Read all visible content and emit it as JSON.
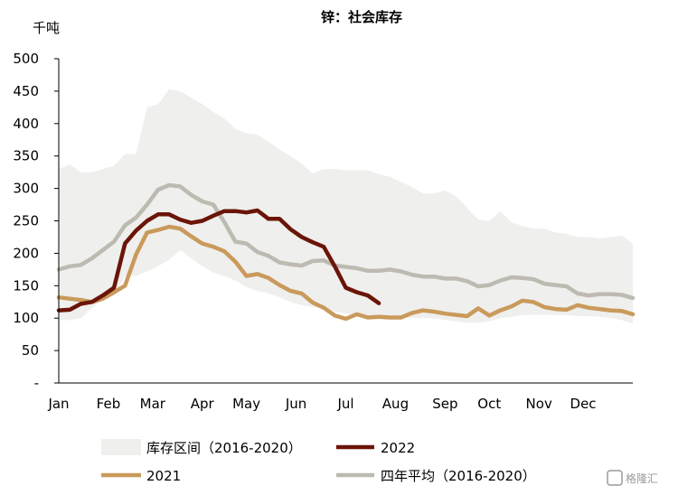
{
  "chart_data": {
    "type": "line",
    "title": "锌：社会库存",
    "ylabel": "千吨",
    "ylim": [
      0,
      500
    ],
    "yticks": [
      "-",
      "50",
      "100",
      "150",
      "200",
      "250",
      "300",
      "350",
      "400",
      "450",
      "500"
    ],
    "ytick_values": [
      0,
      50,
      100,
      150,
      200,
      250,
      300,
      350,
      400,
      450,
      500
    ],
    "x_range": [
      0,
      52
    ],
    "months": [
      "Jan",
      "Feb",
      "Mar",
      "Apr",
      "May",
      "Jun",
      "Jul",
      "Aug",
      "Sep",
      "Oct",
      "Nov",
      "Dec"
    ],
    "month_positions": [
      0,
      4.5,
      8.5,
      13,
      17,
      21.5,
      26,
      30.5,
      35,
      39,
      43.5,
      47.5
    ],
    "legend": {
      "band": "库存区间（2016-2020）",
      "s2022": "2022",
      "s2021": "2021",
      "avg": "四年平均（2016-2020）"
    },
    "band": {
      "name": "库存区间（2016-2020）",
      "color": "#efefed",
      "x": [
        0,
        1,
        2,
        3,
        4,
        5,
        6,
        7,
        8,
        9,
        10,
        11,
        12,
        13,
        14,
        15,
        16,
        17,
        18,
        19,
        20,
        21,
        22,
        23,
        24,
        25,
        26,
        27,
        28,
        29,
        30,
        31,
        32,
        33,
        34,
        35,
        36,
        37,
        38,
        39,
        40,
        41,
        42,
        43,
        44,
        45,
        46,
        47,
        48,
        49,
        50,
        51,
        52
      ],
      "upper": [
        330,
        337,
        325,
        325,
        330,
        335,
        353,
        353,
        425,
        430,
        453,
        450,
        440,
        430,
        418,
        408,
        392,
        385,
        383,
        372,
        360,
        350,
        338,
        323,
        330,
        330,
        328,
        328,
        328,
        322,
        318,
        310,
        302,
        292,
        292,
        297,
        288,
        270,
        252,
        250,
        265,
        248,
        242,
        238,
        238,
        232,
        230,
        225,
        225,
        223,
        225,
        227,
        215
      ],
      "lower": [
        97,
        97,
        100,
        115,
        128,
        135,
        165,
        165,
        172,
        180,
        190,
        205,
        192,
        180,
        170,
        165,
        158,
        148,
        142,
        138,
        132,
        125,
        120,
        117,
        115,
        110,
        107,
        105,
        102,
        100,
        100,
        100,
        100,
        100,
        100,
        97,
        95,
        93,
        93,
        95,
        100,
        102,
        105,
        105,
        105,
        105,
        105,
        103,
        103,
        102,
        100,
        97,
        92
      ]
    },
    "series": [
      {
        "name": "四年平均（2016-2020）",
        "color": "#bdbab1",
        "x": [
          0,
          1,
          2,
          3,
          4,
          5,
          6,
          7,
          8,
          9,
          10,
          11,
          12,
          13,
          14,
          15,
          16,
          17,
          18,
          19,
          20,
          21,
          22,
          23,
          24,
          25,
          26,
          27,
          28,
          29,
          30,
          31,
          32,
          33,
          34,
          35,
          36,
          37,
          38,
          39,
          40,
          41,
          42,
          43,
          44,
          45,
          46,
          47,
          48,
          49,
          50,
          51,
          52
        ],
        "values": [
          175,
          180,
          182,
          192,
          205,
          218,
          243,
          255,
          275,
          298,
          305,
          303,
          290,
          280,
          275,
          248,
          218,
          215,
          202,
          196,
          186,
          183,
          181,
          188,
          189,
          181,
          179,
          177,
          173,
          173,
          175,
          172,
          167,
          164,
          164,
          161,
          161,
          157,
          149,
          151,
          158,
          163,
          162,
          160,
          153,
          151,
          149,
          138,
          135,
          137,
          137,
          136,
          131
        ]
      },
      {
        "name": "2021",
        "color": "#c99a5b",
        "x": [
          0,
          1,
          2,
          3,
          4,
          5,
          6,
          7,
          8,
          9,
          10,
          11,
          12,
          13,
          14,
          15,
          16,
          17,
          18,
          19,
          20,
          21,
          22,
          23,
          24,
          25,
          26,
          27,
          28,
          29,
          30,
          31,
          32,
          33,
          34,
          35,
          36,
          37,
          38,
          39,
          40,
          41,
          42,
          43,
          44,
          45,
          46,
          47,
          48,
          49,
          50,
          51,
          52
        ],
        "values": [
          132,
          130,
          128,
          125,
          130,
          140,
          150,
          198,
          232,
          236,
          241,
          238,
          226,
          215,
          210,
          203,
          187,
          165,
          168,
          162,
          151,
          142,
          138,
          124,
          116,
          104,
          99,
          106,
          101,
          102,
          101,
          101,
          108,
          112,
          110,
          107,
          105,
          103,
          115,
          104,
          112,
          118,
          127,
          125,
          117,
          114,
          113,
          120,
          116,
          114,
          112,
          111,
          106
        ]
      },
      {
        "name": "2022",
        "color": "#6b1408",
        "x": [
          0,
          1,
          2,
          3,
          4,
          5,
          6,
          7,
          8,
          9,
          10,
          11,
          12,
          13,
          14,
          15,
          16,
          17,
          18,
          19,
          20,
          21,
          22,
          23,
          24,
          25,
          26,
          27,
          28,
          29
        ],
        "values": [
          112,
          113,
          122,
          125,
          135,
          147,
          215,
          235,
          250,
          260,
          260,
          252,
          247,
          250,
          258,
          265,
          265,
          263,
          266,
          253,
          253,
          237,
          225,
          217,
          210,
          180,
          147,
          140,
          135,
          123
        ]
      }
    ]
  },
  "watermark": "格隆汇"
}
